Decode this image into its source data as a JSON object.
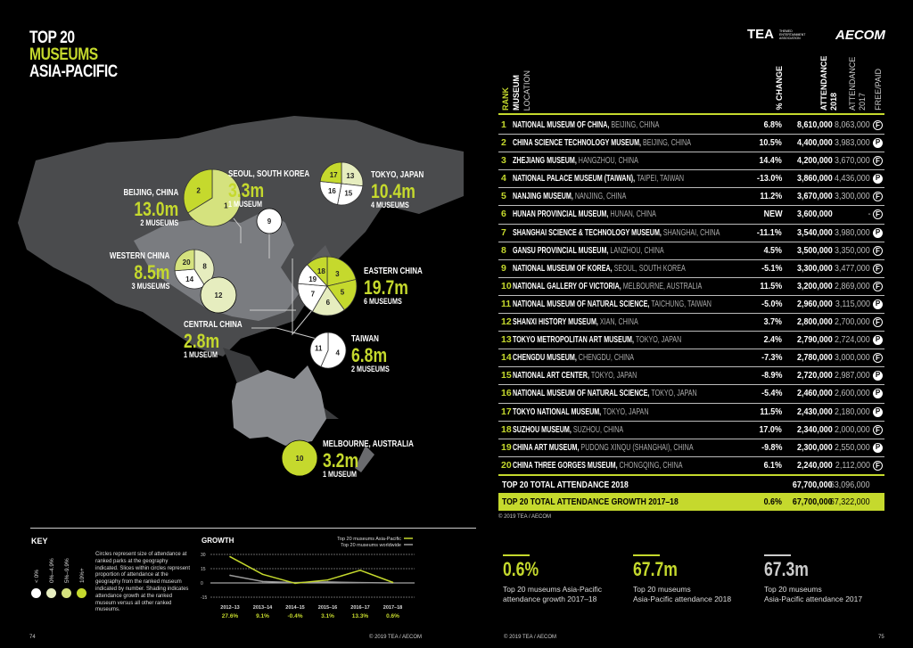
{
  "title": {
    "line1": "TOP 20",
    "line2": "MUSEUMS",
    "line3": "ASIA-PACIFIC"
  },
  "logos": {
    "tea": "TEA",
    "tea_sub": "THEMED ENTERTAINMENT ASSOCIATION",
    "aecom": "AECOM"
  },
  "colors": {
    "lime": "#c5d92d",
    "growth_10_plus": "#c5d92d",
    "growth_5_9": "#d5e27e",
    "growth_0_4": "#e6edbf",
    "growth_neg": "#ffffff",
    "land": "#4a4b4d",
    "china": "#7a7c80"
  },
  "regions": [
    {
      "id": "beijing",
      "city": "BEIJING, CHINA",
      "value": "13.0m",
      "count": "2 MUSEUMS",
      "ranks": [
        1,
        2
      ]
    },
    {
      "id": "seoul",
      "city": "SEOUL, SOUTH KOREA",
      "value": "3.3m",
      "count": "1 MUSEUM",
      "ranks": [
        9
      ]
    },
    {
      "id": "tokyo",
      "city": "TOKYO, JAPAN",
      "value": "10.4m",
      "count": "4 MUSEUMS",
      "ranks": [
        13,
        15,
        16,
        17
      ]
    },
    {
      "id": "western",
      "city": "WESTERN CHINA",
      "value": "8.5m",
      "count": "3 MUSEUMS",
      "ranks": [
        8,
        14,
        20
      ]
    },
    {
      "id": "central",
      "city": "CENTRAL CHINA",
      "value": "2.8m",
      "count": "1 MUSEUM",
      "ranks": [
        12
      ]
    },
    {
      "id": "eastern",
      "city": "EASTERN CHINA",
      "value": "19.7m",
      "count": "6 MUSEUMS",
      "ranks": [
        3,
        5,
        6,
        7,
        19,
        18
      ]
    },
    {
      "id": "taiwan",
      "city": "TAIWAN",
      "value": "6.8m",
      "count": "2 MUSEUMS",
      "ranks": [
        4,
        11
      ]
    },
    {
      "id": "melbourne",
      "city": "MELBOURNE, AUSTRALIA",
      "value": "3.2m",
      "count": "1 MUSEUM",
      "ranks": [
        10
      ]
    }
  ],
  "table": {
    "headers": {
      "rank": "RANK",
      "museum": "MUSEUM",
      "location": "LOCATION",
      "change": "% CHANGE",
      "att2018": "ATTENDANCE 2018",
      "att2017": "ATTENDANCE 2017",
      "freepaid": "FREE/PAID"
    },
    "rows": [
      {
        "rank": "1",
        "name": "NATIONAL MUSEUM OF CHINA",
        "location": "BEIJING, CHINA",
        "change": "6.8%",
        "a2018": "8,610,000",
        "a2017": "8,063,000",
        "fp": "F"
      },
      {
        "rank": "2",
        "name": "CHINA SCIENCE TECHNOLOGY MUSEUM",
        "location": "BEIJING, CHINA",
        "change": "10.5%",
        "a2018": "4,400,000",
        "a2017": "3,983,000",
        "fp": "P"
      },
      {
        "rank": "3",
        "name": "ZHEJIANG MUSEUM",
        "location": "HANGZHOU, CHINA",
        "change": "14.4%",
        "a2018": "4,200,000",
        "a2017": "3,670,000",
        "fp": "F"
      },
      {
        "rank": "4",
        "name": "NATIONAL PALACE MUSEUM (TAIWAN)",
        "location": "TAIPEI, TAIWAN",
        "change": "-13.0%",
        "a2018": "3,860,000",
        "a2017": "4,436,000",
        "fp": "P"
      },
      {
        "rank": "5",
        "name": "NANJING MUSEUM",
        "location": "NANJING, CHINA",
        "change": "11.2%",
        "a2018": "3,670,000",
        "a2017": "3,300,000",
        "fp": "F"
      },
      {
        "rank": "6",
        "name": "HUNAN PROVINCIAL MUSEUM",
        "location": "HUNAN, CHINA",
        "change": "NEW",
        "a2018": "3,600,000",
        "a2017": "-",
        "fp": "F"
      },
      {
        "rank": "7",
        "name": "SHANGHAI SCIENCE & TECHNOLOGY MUSEUM",
        "location": "SHANGHAI, CHINA",
        "change": "-11.1%",
        "a2018": "3,540,000",
        "a2017": "3,980,000",
        "fp": "P"
      },
      {
        "rank": "8",
        "name": "GANSU PROVINCIAL MUSEUM",
        "location": "LANZHOU, CHINA",
        "change": "4.5%",
        "a2018": "3,500,000",
        "a2017": "3,350,000",
        "fp": "F"
      },
      {
        "rank": "9",
        "name": "NATIONAL MUSEUM OF KOREA",
        "location": "SEOUL, SOUTH KOREA",
        "change": "-5.1%",
        "a2018": "3,300,000",
        "a2017": "3,477,000",
        "fp": "F"
      },
      {
        "rank": "10",
        "name": "NATIONAL GALLERY OF VICTORIA",
        "location": "MELBOURNE, AUSTRALIA",
        "change": "11.5%",
        "a2018": "3,200,000",
        "a2017": "2,869,000",
        "fp": "F"
      },
      {
        "rank": "11",
        "name": "NATIONAL MUSEUM OF NATURAL SCIENCE",
        "location": "TAICHUNG, TAIWAN",
        "change": "-5.0%",
        "a2018": "2,960,000",
        "a2017": "3,115,000",
        "fp": "P"
      },
      {
        "rank": "12",
        "name": "SHANXI HISTORY MUSEUM",
        "location": "XIAN, CHINA",
        "change": "3.7%",
        "a2018": "2,800,000",
        "a2017": "2,700,000",
        "fp": "F"
      },
      {
        "rank": "13",
        "name": "TOKYO METROPOLITAN ART MUSEUM",
        "location": "TOKYO, JAPAN",
        "change": "2.4%",
        "a2018": "2,790,000",
        "a2017": "2,724,000",
        "fp": "P"
      },
      {
        "rank": "14",
        "name": "CHENGDU MUSEUM",
        "location": "CHENGDU, CHINA",
        "change": "-7.3%",
        "a2018": "2,780,000",
        "a2017": "3,000,000",
        "fp": "F"
      },
      {
        "rank": "15",
        "name": "NATIONAL ART CENTER",
        "location": "TOKYO, JAPAN",
        "change": "-8.9%",
        "a2018": "2,720,000",
        "a2017": "2,987,000",
        "fp": "P"
      },
      {
        "rank": "16",
        "name": "NATIONAL MUSEUM OF NATURAL SCIENCE",
        "location": "TOKYO, JAPAN",
        "change": "-5.4%",
        "a2018": "2,460,000",
        "a2017": "2,600,000",
        "fp": "P"
      },
      {
        "rank": "17",
        "name": "TOKYO NATIONAL MUSEUM",
        "location": "TOKYO, JAPAN",
        "change": "11.5%",
        "a2018": "2,430,000",
        "a2017": "2,180,000",
        "fp": "P"
      },
      {
        "rank": "18",
        "name": "SUZHOU MUSEUM",
        "location": "SUZHOU, CHINA",
        "change": "17.0%",
        "a2018": "2,340,000",
        "a2017": "2,000,000",
        "fp": "F"
      },
      {
        "rank": "19",
        "name": "CHINA ART MUSEUM",
        "location": "PUDONG XINQU (SHANGHAI), CHINA",
        "change": "-9.8%",
        "a2018": "2,300,000",
        "a2017": "2,550,000",
        "fp": "P"
      },
      {
        "rank": "20",
        "name": "CHINA THREE GORGES MUSEUM",
        "location": "CHONGQING, CHINA",
        "change": "6.1%",
        "a2018": "2,240,000",
        "a2017": "2,112,000",
        "fp": "F"
      }
    ],
    "total": {
      "label": "TOP 20 TOTAL ATTENDANCE 2018",
      "a2018": "67,700,000",
      "a2017": "63,096,000"
    },
    "growth": {
      "label": "TOP 20 TOTAL ATTENDANCE GROWTH 2017–18",
      "change": "0.6%",
      "a2018": "67,700,000",
      "a2017": "67,322,000"
    },
    "copyright": "© 2019 TEA / AECOM"
  },
  "key": {
    "title": "KEY",
    "items": [
      "< 0%",
      "0%–4.9%",
      "5%–9.9%",
      "10%+"
    ],
    "text": "Circles represent size of attendance at ranked parks at the geography indicated. Slices within circles represent proportion of attendance at the geography from the ranked museum indicated by number. Shading indicates attendance growth at the ranked museum versus all other ranked museums."
  },
  "chart_data": {
    "type": "line",
    "title": "GROWTH",
    "categories": [
      "2012–13",
      "2013–14",
      "2014–15",
      "2015–16",
      "2016–17",
      "2017–18"
    ],
    "category_values": [
      "27.6%",
      "9.1%",
      "-0.4%",
      "3.1%",
      "13.3%",
      "0.6%"
    ],
    "yticks": [
      "30",
      "15",
      "0",
      "-15"
    ],
    "ylim": [
      -15,
      30
    ],
    "grid": true,
    "legend": "top-right",
    "series": [
      {
        "name": "Top 20 museums Asia-Pacific",
        "color": "#c5d92d",
        "values": [
          27.6,
          9.1,
          -0.4,
          3.1,
          13.3,
          0.6
        ]
      },
      {
        "name": "Top 20 museums worldwide",
        "color": "#999999",
        "values": [
          8,
          1.5,
          0.3,
          1,
          0.3,
          0
        ]
      }
    ]
  },
  "stats": [
    {
      "value": "0.6%",
      "desc1": "Top 20 museums Asia-Pacific",
      "desc2": "attendance growth 2017–18",
      "color": "#c5d92d"
    },
    {
      "value": "67.7m",
      "desc1": "Top 20 museums",
      "desc2": "Asia-Pacific attendance 2018",
      "color": "#c5d92d"
    },
    {
      "value": "67.3m",
      "desc1": "Top 20 museums",
      "desc2": "Asia-Pacific attendance 2017",
      "color": "#cccccc"
    }
  ],
  "footer": {
    "page_left": "74",
    "page_right": "75",
    "copyright_left": "© 2019 TEA / AECOM",
    "copyright_right": "© 2019 TEA / AECOM"
  }
}
